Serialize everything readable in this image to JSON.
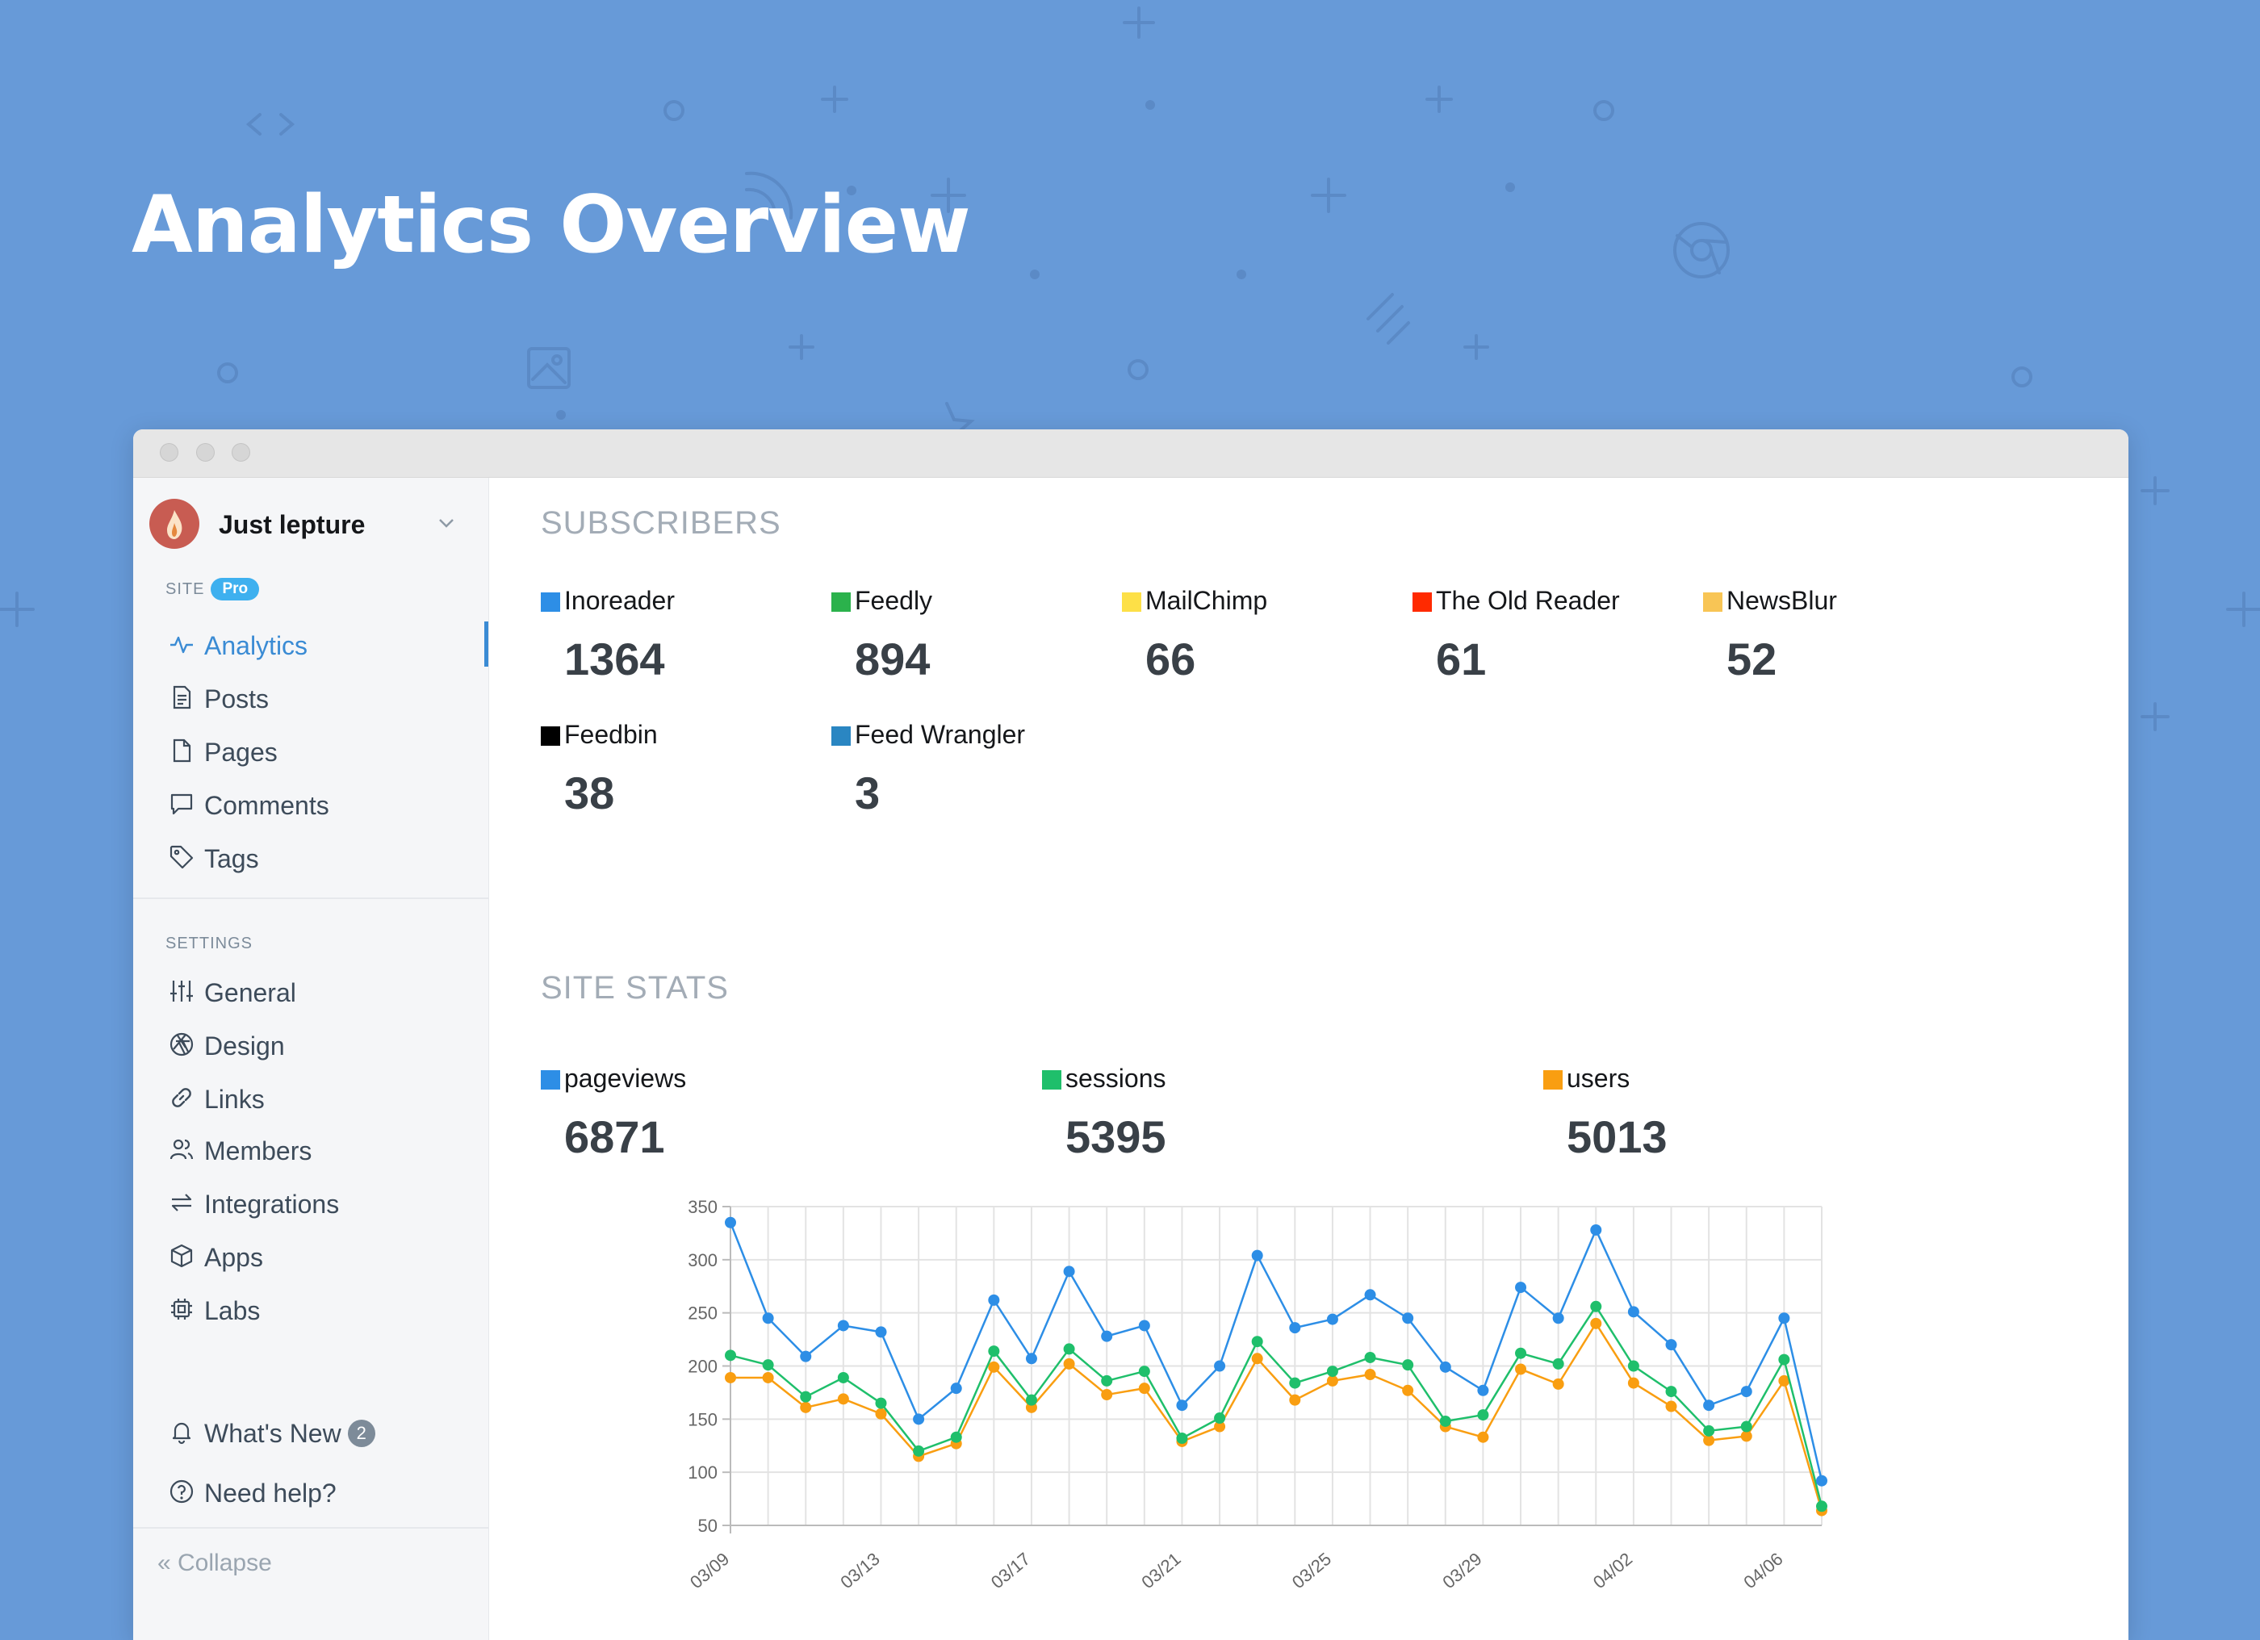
{
  "page": {
    "title": "Analytics Overview"
  },
  "site": {
    "name": "Just lepture"
  },
  "sidebar": {
    "site_label": "SITE",
    "pro_badge": "Pro",
    "items": [
      {
        "label": "Analytics",
        "icon": "activity-icon",
        "active": true
      },
      {
        "label": "Posts",
        "icon": "document-icon"
      },
      {
        "label": "Pages",
        "icon": "page-icon"
      },
      {
        "label": "Comments",
        "icon": "comment-icon"
      },
      {
        "label": "Tags",
        "icon": "tag-icon"
      }
    ],
    "settings_label": "SETTINGS",
    "settings_items": [
      {
        "label": "General",
        "icon": "sliders-icon"
      },
      {
        "label": "Design",
        "icon": "aperture-icon"
      },
      {
        "label": "Links",
        "icon": "link-icon"
      },
      {
        "label": "Members",
        "icon": "members-icon"
      },
      {
        "label": "Integrations",
        "icon": "integrations-icon"
      },
      {
        "label": "Apps",
        "icon": "box-icon"
      },
      {
        "label": "Labs",
        "icon": "chip-icon"
      }
    ],
    "whats_new": {
      "label": "What's New",
      "count": "2"
    },
    "help": {
      "label": "Need help?"
    },
    "collapse": {
      "label": "« Collapse"
    }
  },
  "subscribers": {
    "title": "SUBSCRIBERS",
    "items": [
      {
        "name": "Inoreader",
        "value": "1364",
        "color": "#2d8ee6"
      },
      {
        "name": "Feedly",
        "value": "894",
        "color": "#2bb24c"
      },
      {
        "name": "MailChimp",
        "value": "66",
        "color": "#fde047"
      },
      {
        "name": "The Old Reader",
        "value": "61",
        "color": "#ff2a00"
      },
      {
        "name": "NewsBlur",
        "value": "52",
        "color": "#f8c555"
      },
      {
        "name": "Feedbin",
        "value": "38",
        "color": "#000000"
      },
      {
        "name": "Feed Wrangler",
        "value": "3",
        "color": "#2a86c2"
      }
    ]
  },
  "site_stats": {
    "title": "SITE STATS",
    "items": [
      {
        "name": "pageviews",
        "value": "6871",
        "color": "#2d8ee6"
      },
      {
        "name": "sessions",
        "value": "5395",
        "color": "#1fbf6b"
      },
      {
        "name": "users",
        "value": "5013",
        "color": "#f99e11"
      }
    ]
  },
  "chart_data": {
    "type": "line",
    "ylim": [
      50,
      350
    ],
    "yticks": [
      50,
      100,
      150,
      200,
      250,
      300,
      350
    ],
    "x": [
      "03/09",
      "03/10",
      "03/11",
      "03/12",
      "03/13",
      "03/14",
      "03/15",
      "03/16",
      "03/17",
      "03/18",
      "03/19",
      "03/20",
      "03/21",
      "03/22",
      "03/23",
      "03/24",
      "03/25",
      "03/26",
      "03/27",
      "03/28",
      "03/29",
      "03/30",
      "03/31",
      "04/01",
      "04/02",
      "04/03",
      "04/04",
      "04/05",
      "04/06",
      "04/07"
    ],
    "xtick_labels": [
      "03/09",
      "03/13",
      "03/17",
      "03/21",
      "03/25",
      "03/29",
      "04/02",
      "04/06"
    ],
    "grid": true,
    "series": [
      {
        "name": "pageviews",
        "color": "#2d8ee6",
        "values": [
          335,
          245,
          209,
          238,
          232,
          150,
          179,
          262,
          207,
          289,
          228,
          238,
          163,
          200,
          304,
          236,
          244,
          267,
          245,
          199,
          177,
          274,
          245,
          328,
          251,
          220,
          163,
          176,
          245,
          92
        ]
      },
      {
        "name": "sessions",
        "color": "#1fbf6b",
        "values": [
          210,
          201,
          171,
          189,
          165,
          120,
          133,
          214,
          168,
          216,
          186,
          195,
          132,
          151,
          223,
          184,
          195,
          208,
          201,
          148,
          154,
          212,
          202,
          256,
          200,
          176,
          139,
          143,
          206,
          68
        ]
      },
      {
        "name": "users",
        "color": "#f99e11",
        "values": [
          189,
          189,
          161,
          169,
          155,
          115,
          127,
          199,
          161,
          202,
          173,
          179,
          129,
          143,
          207,
          168,
          186,
          192,
          177,
          143,
          133,
          197,
          183,
          240,
          184,
          162,
          130,
          134,
          186,
          64
        ]
      }
    ]
  }
}
